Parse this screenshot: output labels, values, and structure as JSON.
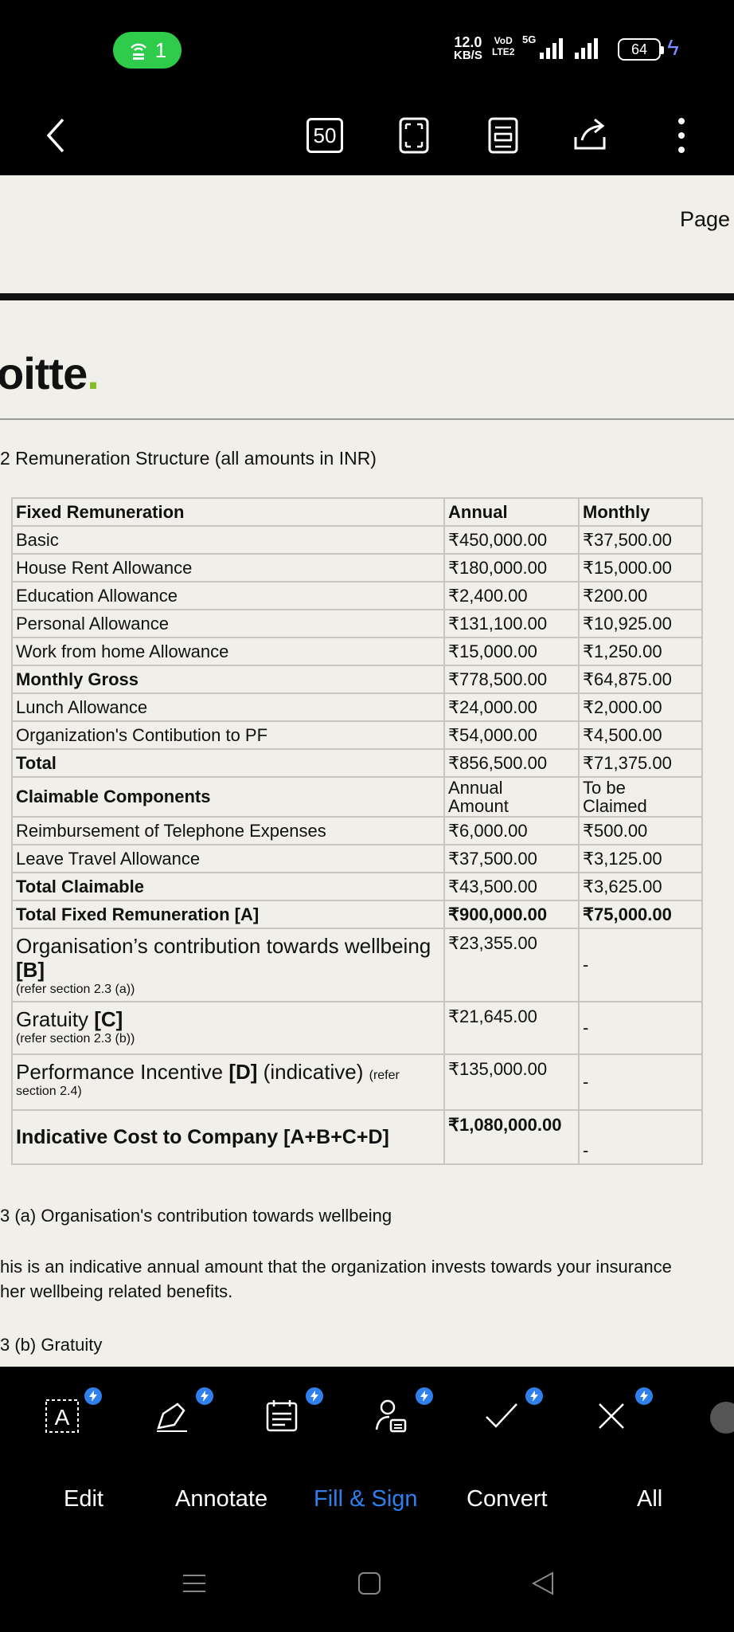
{
  "status_bar": {
    "hotspot_count": "1",
    "net_speed_value": "12.0",
    "net_speed_unit": "KB/S",
    "volte_top": "VoD",
    "volte_bottom": "LTE2",
    "network_type": "5G",
    "battery": "64"
  },
  "toolbar": {
    "page_count": "50"
  },
  "document": {
    "page_label": "Page",
    "logo_text": "oitte",
    "logo_dot": ".",
    "heading": "2 Remuneration Structure (all amounts in INR)",
    "table": {
      "header": [
        "Fixed Remuneration",
        "Annual",
        "Monthly"
      ],
      "fixed_rows": [
        {
          "label": "Basic",
          "annual": "₹450,000.00",
          "monthly": "₹37,500.00",
          "bold": false
        },
        {
          "label": "House Rent Allowance",
          "annual": "₹180,000.00",
          "monthly": "₹15,000.00",
          "bold": false
        },
        {
          "label": "Education Allowance",
          "annual": "₹2,400.00",
          "monthly": "₹200.00",
          "bold": false
        },
        {
          "label": "Personal Allowance",
          "annual": "₹131,100.00",
          "monthly": "₹10,925.00",
          "bold": false
        },
        {
          "label": "Work from home Allowance",
          "annual": "₹15,000.00",
          "monthly": "₹1,250.00",
          "bold": false
        },
        {
          "label": "Monthly Gross",
          "annual": "₹778,500.00",
          "monthly": "₹64,875.00",
          "bold": true
        },
        {
          "label": "Lunch Allowance",
          "annual": "₹24,000.00",
          "monthly": "₹2,000.00",
          "bold": false
        },
        {
          "label": "Organization's Contibution to PF",
          "annual": "₹54,000.00",
          "monthly": "₹4,500.00",
          "bold": false
        },
        {
          "label": "Total",
          "annual": "₹856,500.00",
          "monthly": "₹71,375.00",
          "bold": true
        }
      ],
      "claimable_header": {
        "label": "Claimable Components",
        "annual_line1": "Annual",
        "annual_line2": "Amount",
        "monthly_line1": "To be",
        "monthly_line2": "Claimed"
      },
      "claimable_rows": [
        {
          "label": "Reimbursement of Telephone Expenses",
          "annual": "₹6,000.00",
          "monthly": "₹500.00"
        },
        {
          "label": "Leave Travel Allowance",
          "annual": "₹37,500.00",
          "monthly": "₹3,125.00"
        }
      ],
      "total_claimable": {
        "label": "Total Claimable",
        "annual": "₹43,500.00",
        "monthly": "₹3,625.00"
      },
      "total_fixed": {
        "label": "Total Fixed Remuneration [A]",
        "annual": "₹900,000.00",
        "monthly": "₹75,000.00"
      },
      "wellbeing": {
        "label_a": "Organisation’s contribution towards wellbeing ",
        "label_b": "[B]",
        "ref": "(refer section 2.3 (a))",
        "annual": "₹23,355.00",
        "monthly": "-"
      },
      "gratuity": {
        "label_a": "Gratuity ",
        "label_b": "[C]",
        "ref": "(refer section 2.3 (b))",
        "annual": "₹21,645.00",
        "monthly": "-"
      },
      "incentive": {
        "label_a": "Performance Incentive ",
        "label_b": "[D]",
        "label_c": " (indicative) ",
        "ref_a": "(refer",
        "ref_b": "section 2.4)",
        "annual": "₹135,000.00",
        "monthly": "-"
      },
      "ctc": {
        "label": "Indicative Cost to Company [A+B+C+D]",
        "annual": "₹1,080,000.00",
        "monthly": "-"
      }
    },
    "section_a_title": "3 (a) Organisation's contribution towards wellbeing",
    "section_a_line1": "his is an indicative annual amount that the organization invests towards your insurance",
    "section_a_line2": "her wellbeing related benefits.",
    "section_b_title": "3 (b) Gratuity"
  },
  "tools": [
    "edit-text",
    "annotate-pen",
    "fill-form",
    "sign",
    "check",
    "cross"
  ],
  "tabs": {
    "edit": "Edit",
    "annotate": "Annotate",
    "fill_sign": "Fill & Sign",
    "convert": "Convert",
    "all": "All"
  },
  "colors": {
    "accent": "#2f80ed",
    "hotspot": "#2ecc4a",
    "logo_dot": "#86bc25",
    "page_bg": "#f1efe9"
  }
}
